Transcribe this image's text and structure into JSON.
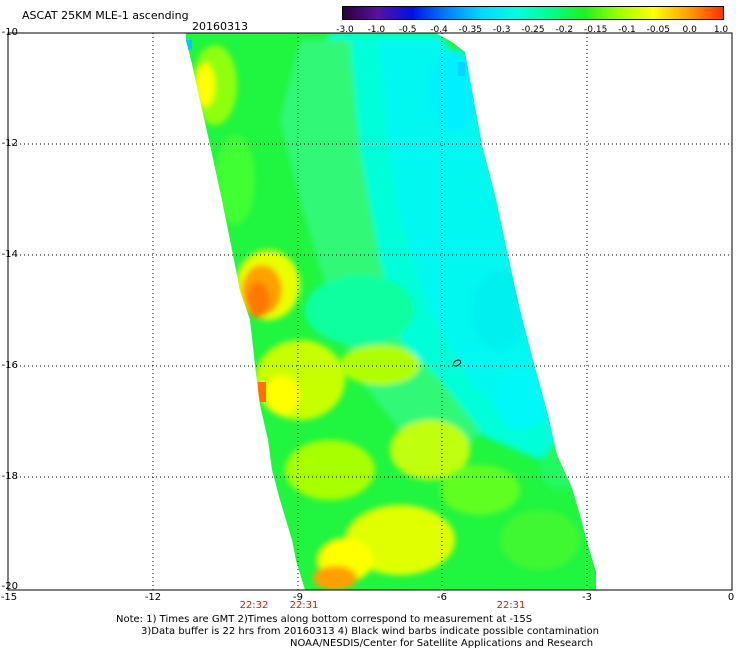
{
  "header": {
    "title": "ASCAT 25KM MLE-1 ascending",
    "date": "20160313"
  },
  "colorbar": {
    "labels": [
      "-3.0",
      "-1.0",
      "-0.5",
      "-0.4",
      "-0.35",
      "-0.3",
      "-0.25",
      "-0.2",
      "-0.15",
      "-0.1",
      "-0.05",
      "0.0",
      "1.0"
    ],
    "colors": [
      "#2a0038",
      "#5a10a0",
      "#0010e8",
      "#0080ff",
      "#00d8ff",
      "#00ffe0",
      "#00ff90",
      "#20f020",
      "#a0ff00",
      "#ffff00",
      "#ffa000",
      "#ff3000"
    ]
  },
  "axes": {
    "y_labels": [
      "-10",
      "-12",
      "-14",
      "-16",
      "-18",
      "-20"
    ],
    "x_labels": [
      "-15",
      "-12",
      "-9",
      "-6",
      "-3",
      "0"
    ],
    "xlim": [
      -15,
      0
    ],
    "ylim": [
      -20,
      -10
    ]
  },
  "times": [
    "22:32",
    "22:31",
    "22:31"
  ],
  "notes": {
    "line1": "Note: 1) Times are GMT 2)Times along bottom correspond to measurement at -15S",
    "line2": "3)Data buffer is 22 hrs from 20160313 4) Black wind barbs indicate possible contamination",
    "line3": "NOAA/NESDIS/Center for Satellite Applications and Research"
  }
}
